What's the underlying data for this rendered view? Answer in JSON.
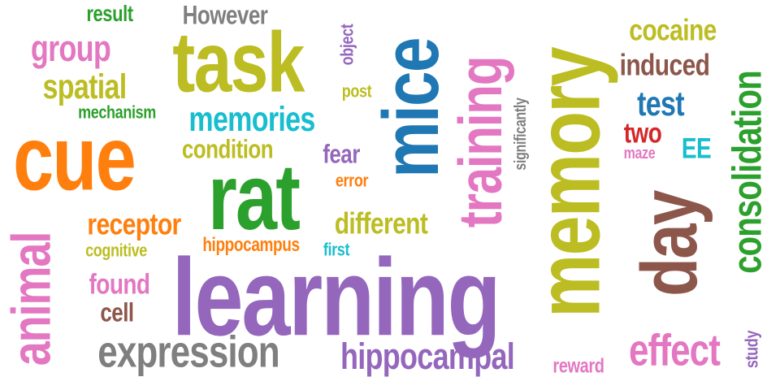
{
  "colors": {
    "olive": "#bcbd22",
    "blue": "#1f77b4",
    "green": "#2ca02c",
    "orange": "#ff7f0e",
    "purple": "#9467bd",
    "pink": "#e377c2",
    "gray": "#7f7f7f",
    "brown": "#8c564b",
    "red": "#d62728",
    "cyan": "#17becf"
  },
  "words": [
    {
      "text": "learning"
    },
    {
      "text": "memory"
    },
    {
      "text": "mice"
    },
    {
      "text": "task"
    },
    {
      "text": "rat"
    },
    {
      "text": "cue"
    },
    {
      "text": "training"
    },
    {
      "text": "day"
    },
    {
      "text": "animal"
    },
    {
      "text": "consolidation"
    },
    {
      "text": "expression"
    },
    {
      "text": "hippocampal"
    },
    {
      "text": "effect"
    },
    {
      "text": "memories"
    },
    {
      "text": "group"
    },
    {
      "text": "spatial"
    },
    {
      "text": "receptor"
    },
    {
      "text": "different"
    },
    {
      "text": "condition"
    },
    {
      "text": "cocaine"
    },
    {
      "text": "induced"
    },
    {
      "text": "test"
    },
    {
      "text": "found"
    },
    {
      "text": "However"
    },
    {
      "text": "fear"
    },
    {
      "text": "two"
    },
    {
      "text": "EE"
    },
    {
      "text": "cell"
    },
    {
      "text": "result"
    },
    {
      "text": "object"
    },
    {
      "text": "hippocampus"
    },
    {
      "text": "mechanism"
    },
    {
      "text": "cognitive"
    },
    {
      "text": "significantly"
    },
    {
      "text": "post"
    },
    {
      "text": "error"
    },
    {
      "text": "first"
    },
    {
      "text": "maze"
    },
    {
      "text": "reward"
    },
    {
      "text": "study"
    }
  ]
}
